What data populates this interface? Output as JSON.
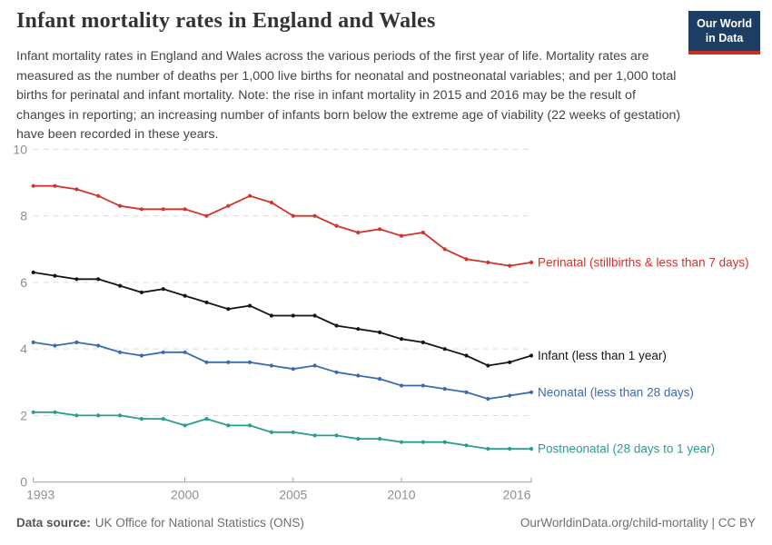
{
  "header": {
    "title": "Infant mortality rates in England and Wales",
    "subtitle": "Infant mortality rates in England and Wales across the various periods of the first year of life. Mortality rates are measured as the number of deaths per 1,000 live births for neonatal and postneonatal variables; and per 1,000 total births for perinatal and infant mortality. Note: the rise in infant mortality in 2015 and 2016 may be the result of changes in reporting; an increasing number of infants born below the extreme age of viability (22 weeks of gestation) have been recorded in these years.",
    "logo": {
      "line1": "Our World",
      "line2": "in Data"
    }
  },
  "footer": {
    "source_label": "Data source:",
    "source_text": "UK Office for National Statistics (ONS)",
    "credit": "OurWorldinData.org/child-mortality | CC BY"
  },
  "chart_data": {
    "type": "line",
    "title": "Infant mortality rates in England and Wales",
    "xlabel": "",
    "ylabel": "",
    "ylim": [
      0,
      10
    ],
    "yticks": [
      0,
      2,
      4,
      6,
      8,
      10
    ],
    "xticks": [
      1993,
      2000,
      2005,
      2010,
      2016
    ],
    "grid": "horizontal-dashed",
    "legend_position": "right-end-labels",
    "x": [
      1993,
      1994,
      1995,
      1996,
      1997,
      1998,
      1999,
      2000,
      2001,
      2002,
      2003,
      2004,
      2005,
      2006,
      2007,
      2008,
      2009,
      2010,
      2011,
      2012,
      2013,
      2014,
      2015,
      2016
    ],
    "series": [
      {
        "name": "Perinatal (stillbirths & less than 7 days)",
        "color": "#d0342c",
        "values": [
          8.9,
          8.9,
          8.8,
          8.6,
          8.3,
          8.2,
          8.2,
          8.2,
          8.0,
          8.3,
          8.6,
          8.4,
          8.0,
          8.0,
          7.7,
          7.5,
          7.6,
          7.4,
          7.5,
          7.0,
          6.7,
          6.6,
          6.5,
          6.6
        ]
      },
      {
        "name": "Infant (less than 1 year)",
        "color": "#161616",
        "values": [
          6.3,
          6.2,
          6.1,
          6.1,
          5.9,
          5.7,
          5.8,
          5.6,
          5.4,
          5.2,
          5.3,
          5.0,
          5.0,
          5.0,
          4.7,
          4.6,
          4.5,
          4.3,
          4.2,
          4.0,
          3.8,
          3.5,
          3.6,
          3.8
        ]
      },
      {
        "name": "Neonatal (less than 28 days)",
        "color": "#3b6aae",
        "values": [
          4.2,
          4.1,
          4.2,
          4.1,
          3.9,
          3.8,
          3.9,
          3.9,
          3.6,
          3.6,
          3.6,
          3.5,
          3.4,
          3.5,
          3.3,
          3.2,
          3.1,
          2.9,
          2.9,
          2.8,
          2.7,
          2.5,
          2.6,
          2.7
        ]
      },
      {
        "name": "Postneonatal (28 days to 1 year)",
        "color": "#2b9c92",
        "values": [
          2.1,
          2.1,
          2.0,
          2.0,
          2.0,
          1.9,
          1.9,
          1.7,
          1.9,
          1.7,
          1.7,
          1.5,
          1.5,
          1.4,
          1.4,
          1.3,
          1.3,
          1.2,
          1.2,
          1.2,
          1.1,
          1.0,
          1.0,
          1.0
        ]
      }
    ]
  }
}
